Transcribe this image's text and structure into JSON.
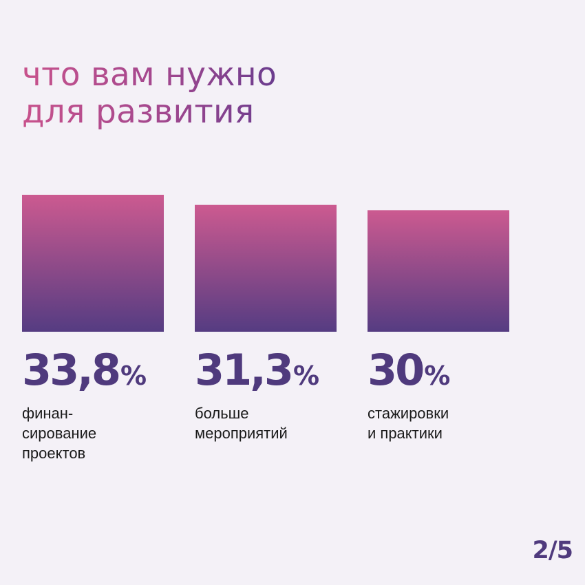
{
  "slide": {
    "title_line1": "что вам нужно",
    "title_line2": "для развития",
    "page_indicator": "2/5"
  },
  "colors": {
    "background": "#f4f1f7",
    "bar_top": "#cc5a90",
    "bar_bottom": "#553c82",
    "value_text": "#4f3a7d",
    "title_pink": "#c8528c",
    "title_purple": "#6a3c8e"
  },
  "chart_data": {
    "type": "bar",
    "title": "что вам нужно для развития",
    "categories": [
      "финан-\nсирование\nпроектов",
      "больше\nмероприятий",
      "стажировки\nи практики"
    ],
    "values": [
      33.8,
      31.3,
      30
    ],
    "value_labels": [
      "33,8",
      "31,3",
      "30"
    ],
    "unit": "%",
    "xlabel": "",
    "ylabel": "",
    "grid": false,
    "legend": "none"
  }
}
